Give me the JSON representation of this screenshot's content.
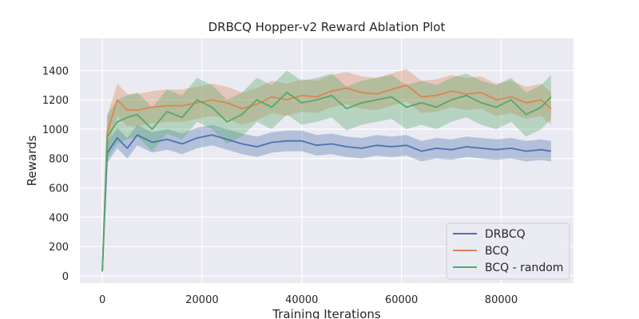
{
  "chart_data": {
    "type": "line",
    "title": "DRBCQ Hopper-v2 Reward Ablation Plot",
    "xlabel": "Training Iterations",
    "ylabel": "Rewards",
    "xlim": [
      -4500,
      94500
    ],
    "ylim": [
      -50,
      1620
    ],
    "xticks": [
      0,
      20000,
      40000,
      60000,
      80000
    ],
    "xtick_labels": [
      "0",
      "20000",
      "40000",
      "60000",
      "80000"
    ],
    "yticks": [
      0,
      200,
      400,
      600,
      800,
      1000,
      1200,
      1400
    ],
    "ytick_labels": [
      "0",
      "200",
      "400",
      "600",
      "800",
      "1000",
      "1200",
      "1400"
    ],
    "grid": true,
    "legend_position": "lower right",
    "style": {
      "background": "#eaeaf2",
      "grid_color": "#ffffff"
    },
    "series": [
      {
        "name": "DRBCQ",
        "color": "#4c72b0",
        "x": [
          0,
          1000,
          3000,
          5000,
          7000,
          10000,
          13000,
          16000,
          19000,
          22000,
          25000,
          28000,
          31000,
          34000,
          37000,
          40000,
          43000,
          46000,
          49000,
          52000,
          55000,
          58000,
          61000,
          64000,
          67000,
          70000,
          73000,
          76000,
          79000,
          82000,
          85000,
          88000,
          90000
        ],
        "values": [
          30,
          840,
          940,
          870,
          960,
          910,
          930,
          900,
          940,
          960,
          930,
          900,
          880,
          910,
          920,
          920,
          890,
          900,
          880,
          870,
          890,
          880,
          890,
          850,
          870,
          860,
          880,
          870,
          860,
          870,
          850,
          860,
          850
        ],
        "band_width": 70
      },
      {
        "name": "BCQ",
        "color": "#dd8452",
        "x": [
          0,
          1000,
          3000,
          5000,
          7000,
          10000,
          13000,
          16000,
          19000,
          22000,
          25000,
          28000,
          31000,
          34000,
          37000,
          40000,
          43000,
          46000,
          49000,
          52000,
          55000,
          58000,
          61000,
          64000,
          67000,
          70000,
          73000,
          76000,
          79000,
          82000,
          85000,
          88000,
          90000
        ],
        "values": [
          30,
          980,
          1200,
          1130,
          1130,
          1150,
          1160,
          1160,
          1180,
          1200,
          1180,
          1140,
          1170,
          1220,
          1200,
          1230,
          1220,
          1260,
          1280,
          1250,
          1240,
          1270,
          1300,
          1220,
          1230,
          1260,
          1240,
          1250,
          1200,
          1220,
          1180,
          1200,
          1140
        ],
        "band_width": 110
      },
      {
        "name": "BCQ - random",
        "color": "#55a868",
        "x": [
          0,
          1000,
          3000,
          5000,
          7000,
          10000,
          13000,
          16000,
          19000,
          22000,
          25000,
          28000,
          31000,
          34000,
          37000,
          40000,
          43000,
          46000,
          49000,
          52000,
          55000,
          58000,
          61000,
          64000,
          67000,
          70000,
          73000,
          76000,
          79000,
          82000,
          85000,
          88000,
          90000
        ],
        "values": [
          30,
          950,
          1050,
          1080,
          1100,
          1000,
          1120,
          1080,
          1200,
          1150,
          1050,
          1100,
          1200,
          1150,
          1250,
          1180,
          1200,
          1230,
          1140,
          1180,
          1200,
          1220,
          1150,
          1180,
          1150,
          1200,
          1230,
          1180,
          1150,
          1200,
          1100,
          1150,
          1220
        ],
        "band_width": 150
      }
    ]
  }
}
